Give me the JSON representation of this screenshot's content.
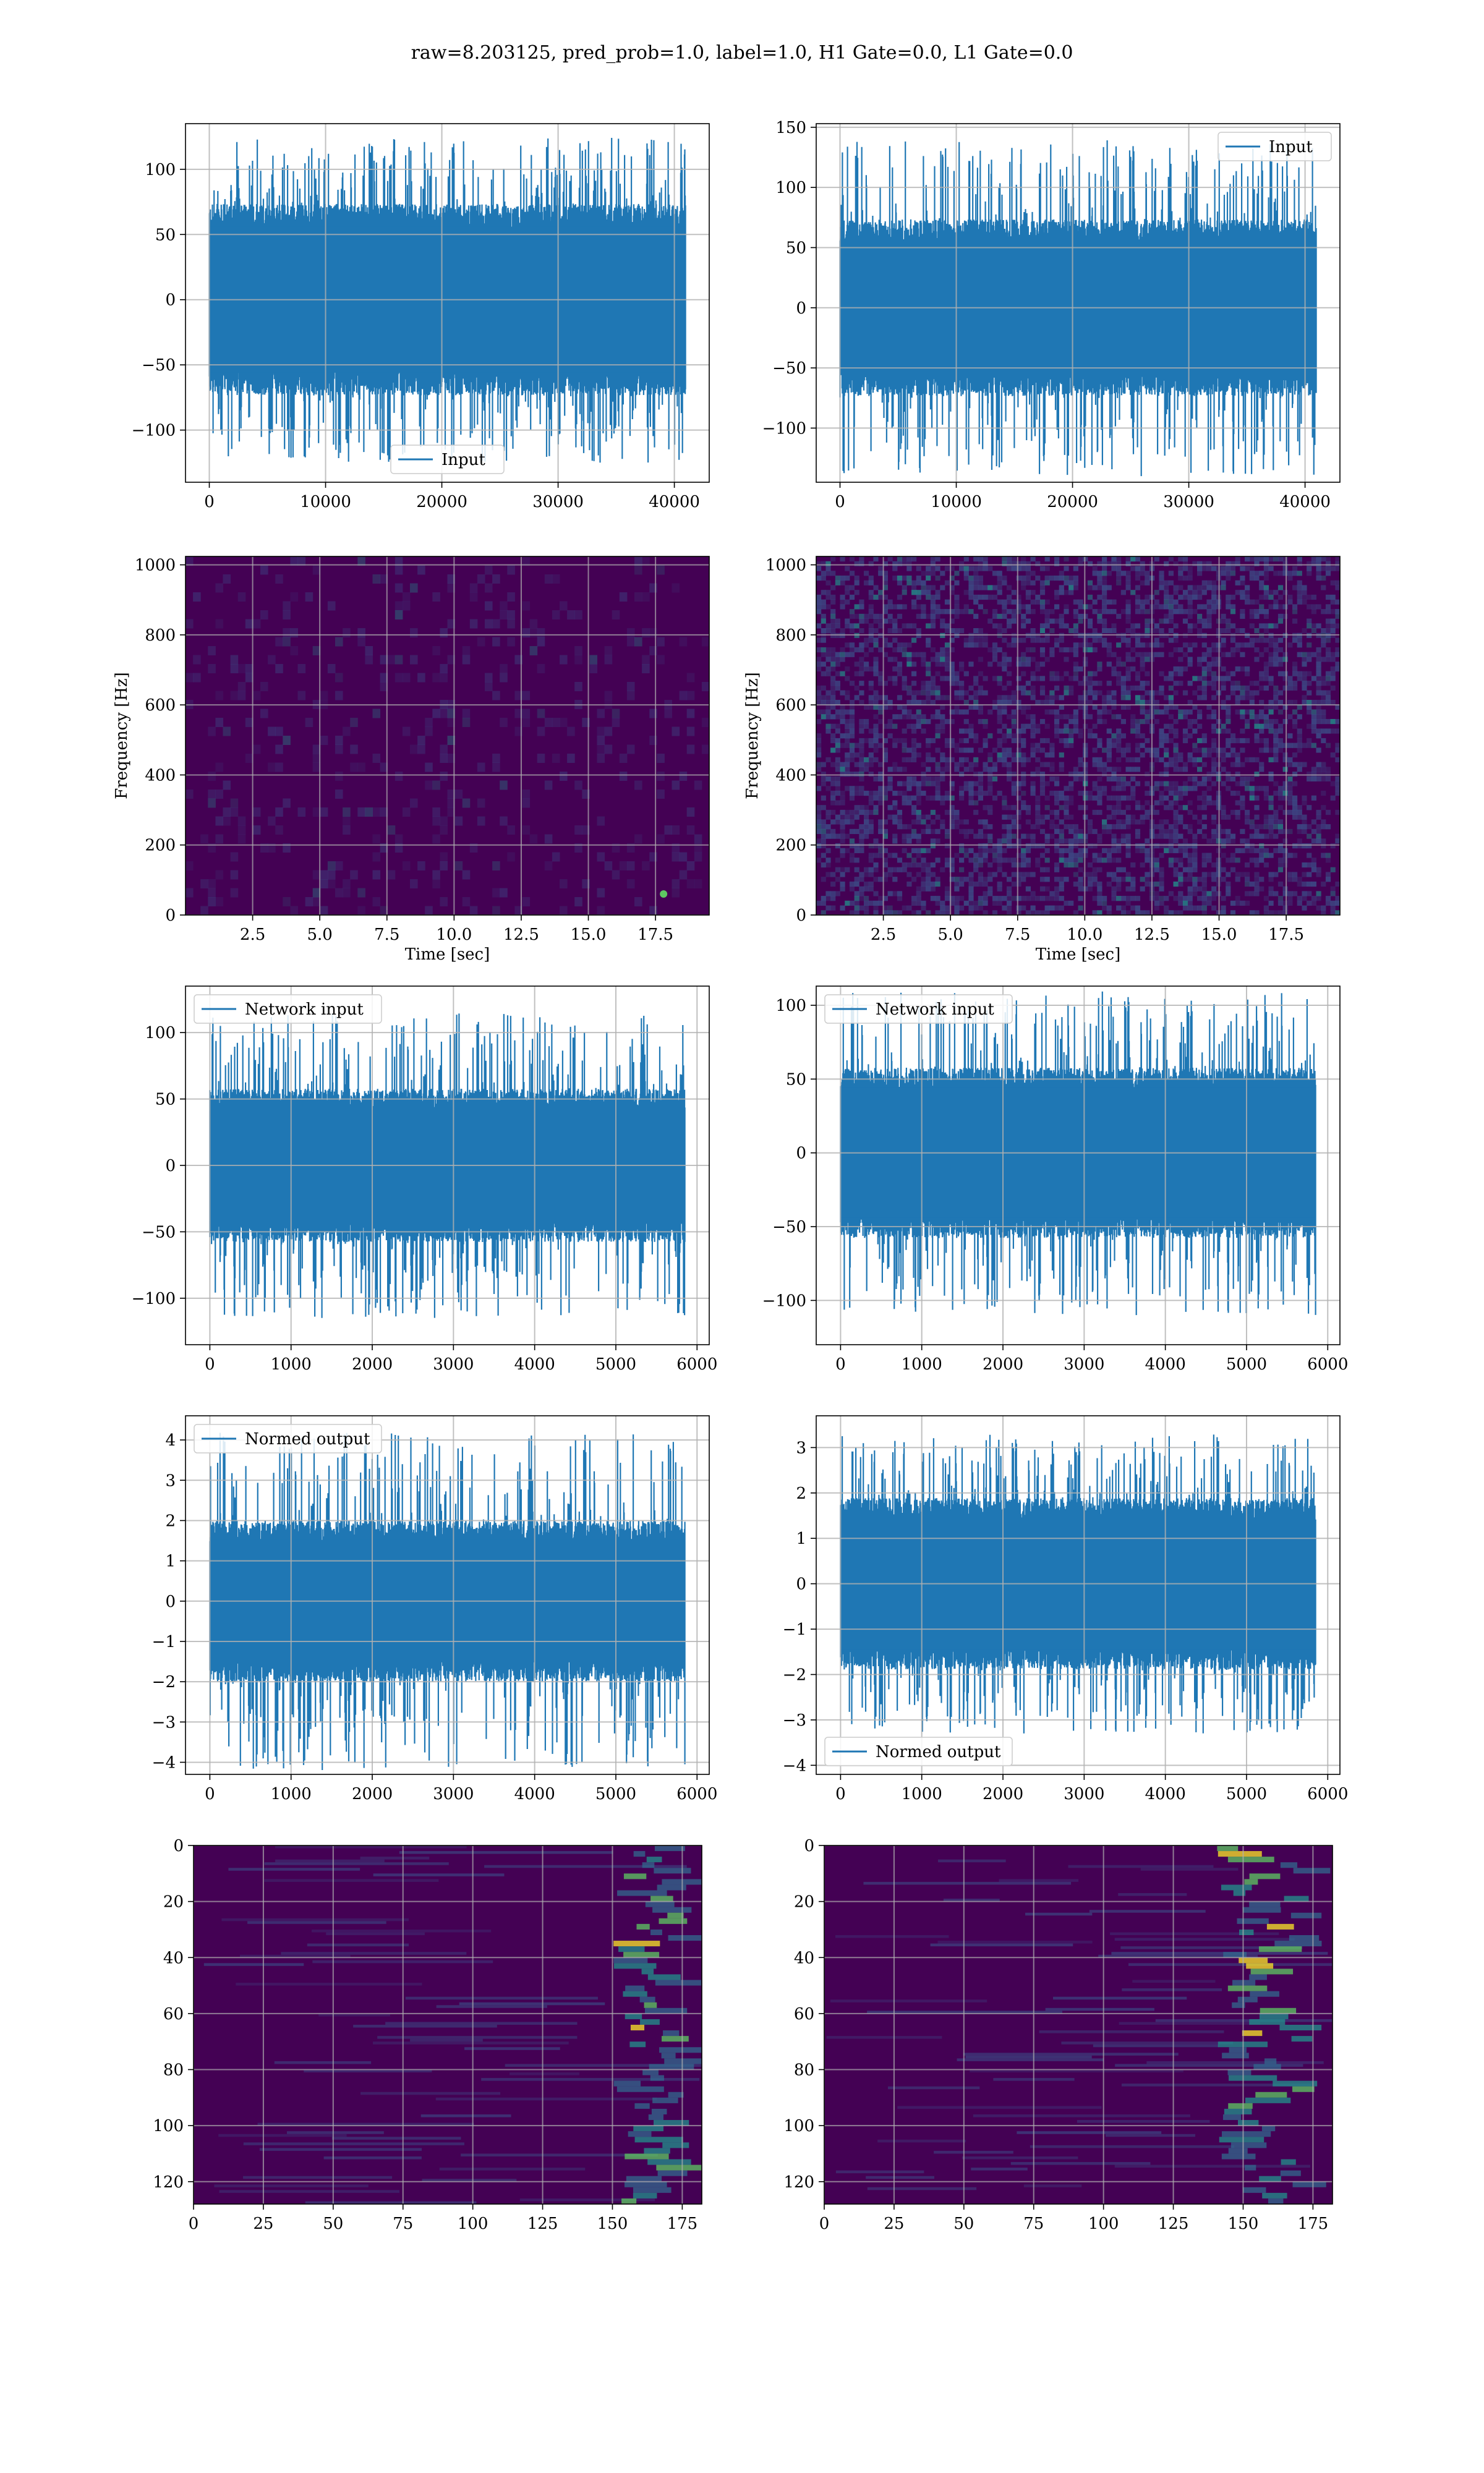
{
  "figure_title": "raw=8.203125, pred_prob=1.0, label=1.0, H1 Gate=0.0, L1 Gate=0.0",
  "colors": {
    "line": "#1f77b4",
    "grid": "#b0b0b0",
    "viridis_dark": "#440154",
    "viridis_yellow": "#fde725"
  },
  "chart_data": [
    {
      "id": "p1",
      "type": "line",
      "series": [
        {
          "name": "Input",
          "amplitude": 70,
          "spikes": 125
        }
      ],
      "xlim": [
        -2048,
        43000
      ],
      "ylim": [
        -140,
        135
      ],
      "xticks": [
        0,
        10000,
        20000,
        30000,
        40000
      ],
      "xticklabels": [
        "0",
        "10000",
        "20000",
        "30000",
        "40000"
      ],
      "yticks": [
        -100,
        -50,
        0,
        50,
        100
      ],
      "yticklabels": [
        "−100",
        "−50",
        "0",
        "50",
        "100"
      ],
      "legend_loc": "lower center",
      "grid": true,
      "xlabel": "",
      "ylabel": ""
    },
    {
      "id": "p2",
      "type": "line",
      "series": [
        {
          "name": "Input",
          "amplitude": 70,
          "spikes": 140
        }
      ],
      "xlim": [
        -2048,
        43000
      ],
      "ylim": [
        -145,
        153
      ],
      "xticks": [
        0,
        10000,
        20000,
        30000,
        40000
      ],
      "xticklabels": [
        "0",
        "10000",
        "20000",
        "30000",
        "40000"
      ],
      "yticks": [
        -100,
        -50,
        0,
        50,
        100,
        150
      ],
      "yticklabels": [
        "−100",
        "−50",
        "0",
        "50",
        "100",
        "150"
      ],
      "legend_loc": "upper right",
      "grid": true,
      "xlabel": "",
      "ylabel": ""
    },
    {
      "id": "p3",
      "type": "heatmap",
      "variant": "spectrogram-dark",
      "hotspot": true,
      "xlim": [
        0,
        19.5
      ],
      "ylim": [
        0,
        1024
      ],
      "xticks": [
        2.5,
        5.0,
        7.5,
        10.0,
        12.5,
        15.0,
        17.5
      ],
      "xticklabels": [
        "2.5",
        "5.0",
        "7.5",
        "10.0",
        "12.5",
        "15.0",
        "17.5"
      ],
      "yticks": [
        0,
        200,
        400,
        600,
        800,
        1000
      ],
      "yticklabels": [
        "0",
        "200",
        "400",
        "600",
        "800",
        "1000"
      ],
      "xlabel": "Time [sec]",
      "ylabel": "Frequency [Hz]",
      "grid": true
    },
    {
      "id": "p4",
      "type": "heatmap",
      "variant": "spectrogram-noisy",
      "hotspot": false,
      "xlim": [
        0,
        19.5
      ],
      "ylim": [
        0,
        1024
      ],
      "xticks": [
        2.5,
        5.0,
        7.5,
        10.0,
        12.5,
        15.0,
        17.5
      ],
      "xticklabels": [
        "2.5",
        "5.0",
        "7.5",
        "10.0",
        "12.5",
        "15.0",
        "17.5"
      ],
      "yticks": [
        0,
        200,
        400,
        600,
        800,
        1000
      ],
      "yticklabels": [
        "0",
        "200",
        "400",
        "600",
        "800",
        "1000"
      ],
      "xlabel": "Time [sec]",
      "ylabel": "Frequency [Hz]",
      "grid": true
    },
    {
      "id": "p5",
      "type": "line",
      "series": [
        {
          "name": "Network input",
          "amplitude": 55,
          "spikes": 115
        }
      ],
      "xlim": [
        -300,
        6150
      ],
      "ylim": [
        -135,
        135
      ],
      "xticks": [
        0,
        1000,
        2000,
        3000,
        4000,
        5000,
        6000
      ],
      "xticklabels": [
        "0",
        "1000",
        "2000",
        "3000",
        "4000",
        "5000",
        "6000"
      ],
      "yticks": [
        -100,
        -50,
        0,
        50,
        100
      ],
      "yticklabels": [
        "−100",
        "−50",
        "0",
        "50",
        "100"
      ],
      "legend_loc": "upper left",
      "grid": true,
      "xlabel": "",
      "ylabel": ""
    },
    {
      "id": "p6",
      "type": "line",
      "series": [
        {
          "name": "Network input",
          "amplitude": 55,
          "spikes": 110
        }
      ],
      "xlim": [
        -300,
        6150
      ],
      "ylim": [
        -130,
        113
      ],
      "xticks": [
        0,
        1000,
        2000,
        3000,
        4000,
        5000,
        6000
      ],
      "xticklabels": [
        "0",
        "1000",
        "2000",
        "3000",
        "4000",
        "5000",
        "6000"
      ],
      "yticks": [
        -100,
        -50,
        0,
        50,
        100
      ],
      "yticklabels": [
        "−100",
        "−50",
        "0",
        "50",
        "100"
      ],
      "legend_loc": "upper left",
      "grid": true,
      "xlabel": "",
      "ylabel": ""
    },
    {
      "id": "p7",
      "type": "line",
      "series": [
        {
          "name": "Normed output",
          "amplitude": 1.9,
          "spikes": 4.2
        }
      ],
      "xlim": [
        -300,
        6150
      ],
      "ylim": [
        -4.3,
        4.6
      ],
      "xticks": [
        0,
        1000,
        2000,
        3000,
        4000,
        5000,
        6000
      ],
      "xticklabels": [
        "0",
        "1000",
        "2000",
        "3000",
        "4000",
        "5000",
        "6000"
      ],
      "yticks": [
        -4,
        -3,
        -2,
        -1,
        0,
        1,
        2,
        3,
        4
      ],
      "yticklabels": [
        "−4",
        "−3",
        "−2",
        "−1",
        "0",
        "1",
        "2",
        "3",
        "4"
      ],
      "legend_loc": "upper left",
      "grid": true,
      "xlabel": "",
      "ylabel": ""
    },
    {
      "id": "p8",
      "type": "line",
      "series": [
        {
          "name": "Normed output",
          "amplitude": 1.8,
          "spikes": 3.3
        }
      ],
      "xlim": [
        -300,
        6150
      ],
      "ylim": [
        -4.2,
        3.7
      ],
      "xticks": [
        0,
        1000,
        2000,
        3000,
        4000,
        5000,
        6000
      ],
      "xticklabels": [
        "0",
        "1000",
        "2000",
        "3000",
        "4000",
        "5000",
        "6000"
      ],
      "yticks": [
        -4,
        -3,
        -2,
        -1,
        0,
        1,
        2,
        3
      ],
      "yticklabels": [
        "−4",
        "−3",
        "−2",
        "−1",
        "0",
        "1",
        "2",
        "3"
      ],
      "legend_loc": "lower left",
      "grid": true,
      "xlabel": "",
      "ylabel": ""
    },
    {
      "id": "p9",
      "type": "heatmap",
      "variant": "feature-map",
      "band": [
        150,
        180
      ],
      "xlim": [
        0,
        182
      ],
      "ylim": [
        128,
        0
      ],
      "xticks": [
        0,
        25,
        50,
        75,
        100,
        125,
        150,
        175
      ],
      "xticklabels": [
        "0",
        "25",
        "50",
        "75",
        "100",
        "125",
        "150",
        "175"
      ],
      "yticks": [
        0,
        20,
        40,
        60,
        80,
        100,
        120
      ],
      "yticklabels": [
        "0",
        "20",
        "40",
        "60",
        "80",
        "100",
        "120"
      ],
      "xlabel": "",
      "ylabel": "",
      "grid": true
    },
    {
      "id": "p10",
      "type": "heatmap",
      "variant": "feature-map",
      "band": [
        140,
        178
      ],
      "xlim": [
        0,
        182
      ],
      "ylim": [
        128,
        0
      ],
      "xticks": [
        0,
        25,
        50,
        75,
        100,
        125,
        150,
        175
      ],
      "xticklabels": [
        "0",
        "25",
        "50",
        "75",
        "100",
        "125",
        "150",
        "175"
      ],
      "yticks": [
        0,
        20,
        40,
        60,
        80,
        100,
        120
      ],
      "yticklabels": [
        "0",
        "20",
        "40",
        "60",
        "80",
        "100",
        "120"
      ],
      "xlabel": "",
      "ylabel": "",
      "grid": true
    }
  ]
}
